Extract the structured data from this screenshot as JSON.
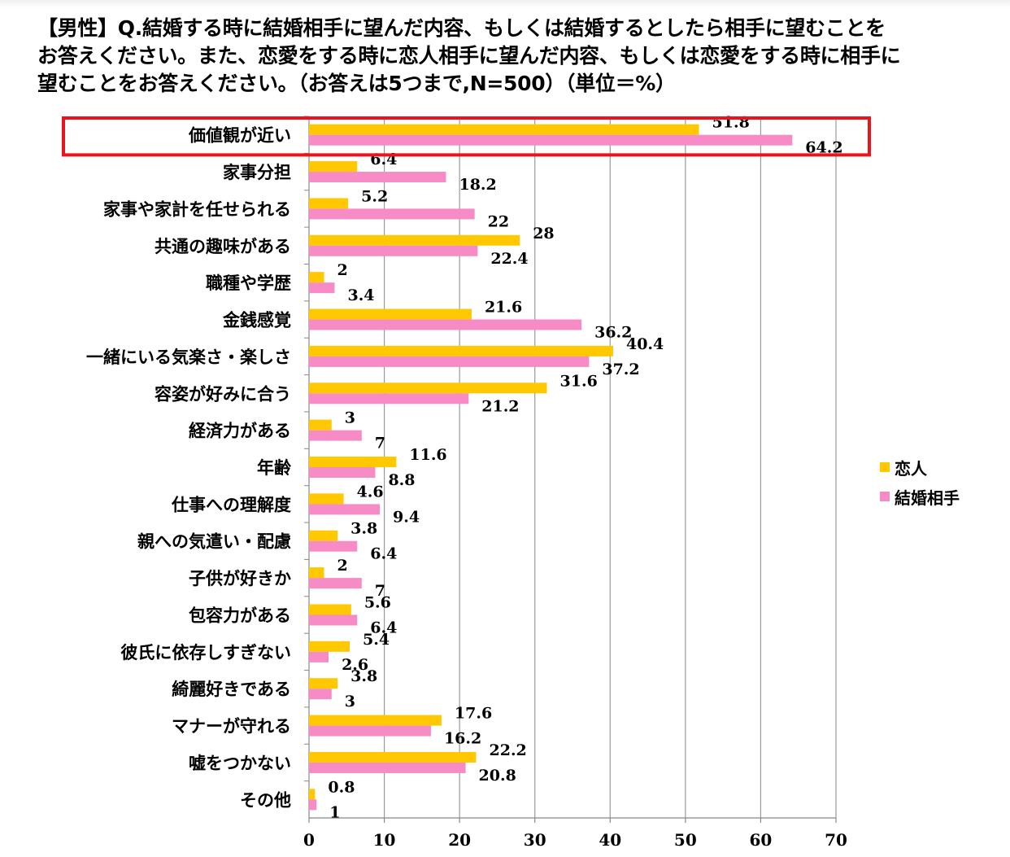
{
  "title": {
    "line1": "【男性】Q.結婚する時に結婚相手に望んだ内容、もしくは結婚するとしたら相手に望むことを",
    "line2": "お答えください。また、恋愛をする時に恋人相手に望んだ内容、もしくは恋愛をする時に相手に",
    "line3": "望むことをお答えください。（お答えは5つまで,N=500）（単位＝%）"
  },
  "legend": {
    "series1": "恋人",
    "series2": "結婚相手"
  },
  "colors": {
    "series1": "#FFC800",
    "series2": "#F68BC6",
    "highlight": "#E8141E",
    "grid": "#999999"
  },
  "chart_data": {
    "type": "bar",
    "orientation": "horizontal",
    "categories": [
      "価値観が近い",
      "家事分担",
      "家事や家計を任せられる",
      "共通の趣味がある",
      "職種や学歴",
      "金銭感覚",
      "一緒にいる気楽さ・楽しさ",
      "容姿が好みに合う",
      "経済力がある",
      "年齢",
      "仕事への理解度",
      "親への気遣い・配慮",
      "子供が好きか",
      "包容力がある",
      "彼氏に依存しすぎない",
      "綺麗好きである",
      "マナーが守れる",
      "嘘をつかない",
      "その他"
    ],
    "series": [
      {
        "name": "恋人",
        "values": [
          51.8,
          6.4,
          5.2,
          28,
          2,
          21.6,
          40.4,
          31.6,
          3,
          11.6,
          4.6,
          3.8,
          2,
          5.6,
          5.4,
          3.8,
          17.6,
          22.2,
          0.8
        ]
      },
      {
        "name": "結婚相手",
        "values": [
          64.2,
          18.2,
          22,
          22.4,
          3.4,
          36.2,
          37.2,
          21.2,
          7,
          8.8,
          9.4,
          6.4,
          7,
          6.4,
          2.6,
          3,
          16.2,
          20.8,
          1
        ]
      }
    ],
    "xlim": [
      0,
      70
    ],
    "xticks": [
      0,
      10,
      20,
      30,
      40,
      50,
      60,
      70
    ],
    "grid": true,
    "legend_position": "right",
    "highlighted_category": "価値観が近い"
  }
}
